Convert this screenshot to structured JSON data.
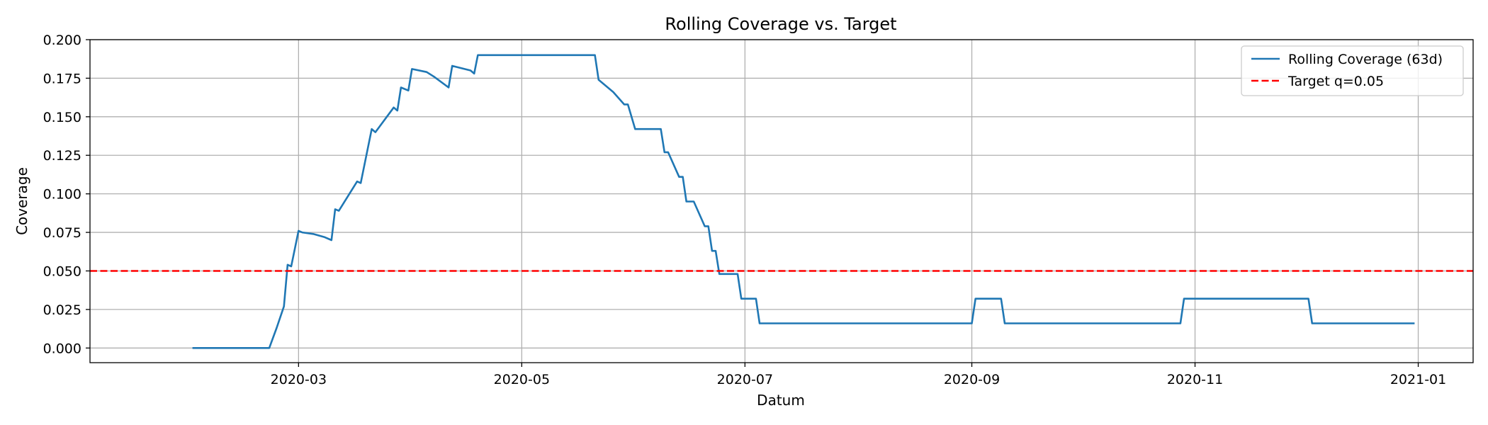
{
  "chart_data": {
    "type": "line",
    "title": "Rolling Coverage vs. Target",
    "xlabel": "Datum",
    "ylabel": "Coverage",
    "xlim": [
      "2020-01-04",
      "2021-01-16"
    ],
    "ylim": [
      -0.0095,
      0.2
    ],
    "grid": true,
    "legend_position": "top-right",
    "x_ticks": [
      {
        "date": "2020-03-01",
        "label": "2020-03"
      },
      {
        "date": "2020-05-01",
        "label": "2020-05"
      },
      {
        "date": "2020-07-01",
        "label": "2020-07"
      },
      {
        "date": "2020-09-01",
        "label": "2020-09"
      },
      {
        "date": "2020-11-01",
        "label": "2020-11"
      },
      {
        "date": "2021-01-01",
        "label": "2021-01"
      }
    ],
    "y_ticks": [
      {
        "value": 0.0,
        "label": "0.000"
      },
      {
        "value": 0.025,
        "label": "0.025"
      },
      {
        "value": 0.05,
        "label": "0.050"
      },
      {
        "value": 0.075,
        "label": "0.075"
      },
      {
        "value": 0.1,
        "label": "0.100"
      },
      {
        "value": 0.125,
        "label": "0.125"
      },
      {
        "value": 0.15,
        "label": "0.150"
      },
      {
        "value": 0.175,
        "label": "0.175"
      },
      {
        "value": 0.2,
        "label": "0.200"
      }
    ],
    "series": [
      {
        "name": "Rolling Coverage (63d)",
        "color": "#1f77b4",
        "style": "solid",
        "points": [
          [
            "2020-02-01",
            0.0
          ],
          [
            "2020-02-22",
            0.0
          ],
          [
            "2020-02-24",
            0.013
          ],
          [
            "2020-02-26",
            0.027
          ],
          [
            "2020-02-27",
            0.054
          ],
          [
            "2020-02-28",
            0.053
          ],
          [
            "2020-03-01",
            0.076
          ],
          [
            "2020-03-02",
            0.075
          ],
          [
            "2020-03-05",
            0.074
          ],
          [
            "2020-03-08",
            0.072
          ],
          [
            "2020-03-10",
            0.07
          ],
          [
            "2020-03-11",
            0.09
          ],
          [
            "2020-03-12",
            0.089
          ],
          [
            "2020-03-17",
            0.108
          ],
          [
            "2020-03-18",
            0.107
          ],
          [
            "2020-03-21",
            0.142
          ],
          [
            "2020-03-22",
            0.14
          ],
          [
            "2020-03-27",
            0.156
          ],
          [
            "2020-03-28",
            0.154
          ],
          [
            "2020-03-29",
            0.169
          ],
          [
            "2020-03-31",
            0.167
          ],
          [
            "2020-04-01",
            0.181
          ],
          [
            "2020-04-05",
            0.179
          ],
          [
            "2020-04-07",
            0.176
          ],
          [
            "2020-04-11",
            0.169
          ],
          [
            "2020-04-12",
            0.183
          ],
          [
            "2020-04-17",
            0.18
          ],
          [
            "2020-04-18",
            0.178
          ],
          [
            "2020-04-19",
            0.19
          ],
          [
            "2020-05-21",
            0.19
          ],
          [
            "2020-05-22",
            0.174
          ],
          [
            "2020-05-26",
            0.166
          ],
          [
            "2020-05-29",
            0.158
          ],
          [
            "2020-05-30",
            0.158
          ],
          [
            "2020-06-01",
            0.142
          ],
          [
            "2020-06-08",
            0.142
          ],
          [
            "2020-06-09",
            0.127
          ],
          [
            "2020-06-10",
            0.127
          ],
          [
            "2020-06-13",
            0.111
          ],
          [
            "2020-06-14",
            0.111
          ],
          [
            "2020-06-15",
            0.095
          ],
          [
            "2020-06-17",
            0.095
          ],
          [
            "2020-06-20",
            0.079
          ],
          [
            "2020-06-21",
            0.079
          ],
          [
            "2020-06-22",
            0.063
          ],
          [
            "2020-06-23",
            0.063
          ],
          [
            "2020-06-24",
            0.048
          ],
          [
            "2020-06-29",
            0.048
          ],
          [
            "2020-06-30",
            0.032
          ],
          [
            "2020-07-04",
            0.032
          ],
          [
            "2020-07-05",
            0.016
          ],
          [
            "2020-09-01",
            0.016
          ],
          [
            "2020-09-02",
            0.032
          ],
          [
            "2020-09-09",
            0.032
          ],
          [
            "2020-09-10",
            0.016
          ],
          [
            "2020-10-28",
            0.016
          ],
          [
            "2020-10-29",
            0.032
          ],
          [
            "2020-12-02",
            0.032
          ],
          [
            "2020-12-03",
            0.016
          ],
          [
            "2020-12-31",
            0.016
          ]
        ]
      },
      {
        "name": "Target q=0.05",
        "color": "#ff0000",
        "style": "dashed",
        "value": 0.05
      }
    ]
  }
}
